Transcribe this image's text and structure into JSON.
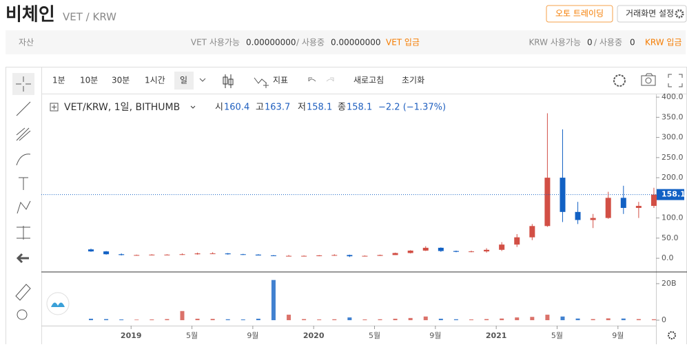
{
  "header": {
    "title": "비체인",
    "pair": "VET / KRW",
    "buttons": [
      "오토 트레이딩",
      "거래화면 설정"
    ]
  },
  "assets": {
    "label": "자산",
    "vet": {
      "available_label": "VET 사용가능",
      "available": "0.00000000",
      "in_use_label": "/ 사용중",
      "in_use": "0.00000000",
      "deposit": "VET 입금"
    },
    "krw": {
      "available_label": "KRW 사용가능",
      "available": "0",
      "in_use_label": "/ 사용중",
      "in_use": "0",
      "deposit": "KRW 입금"
    }
  },
  "toolbar": {
    "intervals": [
      "1분",
      "10분",
      "30분",
      "1시간",
      "일"
    ],
    "indicators": "지표",
    "refresh": "새로고침",
    "reset": "초기화"
  },
  "legend": {
    "symbol": "VET/KRW, 1일, BITHUMB",
    "open_label": "시",
    "open": 160.4,
    "high_label": "고",
    "high": 163.7,
    "low_label": "저",
    "low": 158.1,
    "close_label": "종",
    "close": 158.1,
    "change": "−2.2 (−1.37%)"
  },
  "chart_data": {
    "type": "candlestick",
    "x": [
      "2018-10",
      "2018-11",
      "2018-12",
      "2019-01",
      "2019-02",
      "2019-03",
      "2019-04",
      "2019-05",
      "2019-06",
      "2019-07",
      "2019-08",
      "2019-09",
      "2019-10",
      "2019-11",
      "2019-12",
      "2020-01",
      "2020-02",
      "2020-03",
      "2020-04",
      "2020-05",
      "2020-06",
      "2020-07",
      "2020-08",
      "2020-09",
      "2020-10",
      "2020-11",
      "2020-12",
      "2021-01",
      "2021-02",
      "2021-03",
      "2021-04",
      "2021-05",
      "2021-06",
      "2021-07",
      "2021-08",
      "2021-09",
      "2021-10",
      "2021-11"
    ],
    "open": [
      22,
      17,
      10,
      8,
      8,
      9,
      9,
      10,
      12,
      12,
      10,
      9,
      7,
      6,
      6,
      6,
      7,
      8,
      5,
      6,
      8,
      13,
      19,
      26,
      18,
      16,
      17,
      21,
      34,
      52,
      80,
      200,
      115,
      95,
      100,
      150,
      125,
      130
    ],
    "high": [
      24,
      18,
      12,
      9,
      10,
      10,
      12,
      14,
      15,
      13,
      11,
      10,
      8,
      8,
      7,
      8,
      10,
      9,
      7,
      9,
      14,
      20,
      30,
      27,
      19,
      19,
      25,
      40,
      60,
      85,
      360,
      320,
      140,
      110,
      165,
      180,
      140,
      175
    ],
    "low": [
      16,
      9,
      7,
      7,
      7,
      8,
      8,
      9,
      11,
      9,
      8,
      7,
      6,
      5,
      5,
      5,
      6,
      3,
      5,
      6,
      8,
      12,
      18,
      16,
      15,
      15,
      14,
      18,
      28,
      45,
      78,
      90,
      85,
      75,
      98,
      110,
      100,
      125
    ],
    "close": [
      17,
      10,
      8,
      8,
      9,
      9,
      10,
      12,
      12,
      10,
      9,
      7,
      6,
      6,
      6,
      7,
      8,
      5,
      6,
      8,
      13,
      19,
      26,
      18,
      16,
      17,
      21,
      34,
      52,
      80,
      200,
      115,
      95,
      100,
      150,
      125,
      130,
      158.1
    ],
    "volume": [
      0.8,
      0.6,
      0.4,
      0.3,
      0.4,
      0.6,
      5,
      0.8,
      0.7,
      0.5,
      0.4,
      0.8,
      22,
      3,
      0.6,
      0.4,
      0.5,
      1.5,
      0.4,
      0.5,
      0.8,
      1.2,
      2,
      0.8,
      0.5,
      0.4,
      0.6,
      0.9,
      1.5,
      1.8,
      3,
      2,
      0.9,
      0.6,
      1,
      0.9,
      0.6,
      0.5
    ],
    "up_color": "#d24f45",
    "down_color": "#1261c4",
    "ylim": [
      -34,
      407
    ],
    "yticks": [
      {
        "value": 0,
        "label": "0.0"
      },
      {
        "value": 50,
        "label": "50.0"
      },
      {
        "value": 100,
        "label": "100.0"
      },
      {
        "value": 150,
        "label": "150.0"
      },
      {
        "value": 200,
        "label": "200.0"
      },
      {
        "value": 250,
        "label": "250.0"
      },
      {
        "value": 300,
        "label": "300.0"
      },
      {
        "value": 350,
        "label": "350.0"
      },
      {
        "value": 400,
        "label": "400.0"
      }
    ],
    "volume_ylim": [
      -3,
      26.4
    ],
    "volume_yticks": [
      0,
      {
        "value": 20,
        "label": "20B"
      }
    ],
    "xticks": [
      {
        "value": "2019-01",
        "label": "2019"
      },
      {
        "value": "2019-05",
        "label": "5월"
      },
      {
        "value": "2019-09",
        "label": "9월"
      },
      {
        "value": "2020-01",
        "label": "2020"
      },
      {
        "value": "2020-05",
        "label": "5월"
      },
      {
        "value": "2020-09",
        "label": "9월"
      },
      {
        "value": "2021-01",
        "label": "2021"
      },
      {
        "value": "2021-05",
        "label": "5월"
      },
      {
        "value": "2021-09",
        "label": "9월"
      }
    ]
  }
}
